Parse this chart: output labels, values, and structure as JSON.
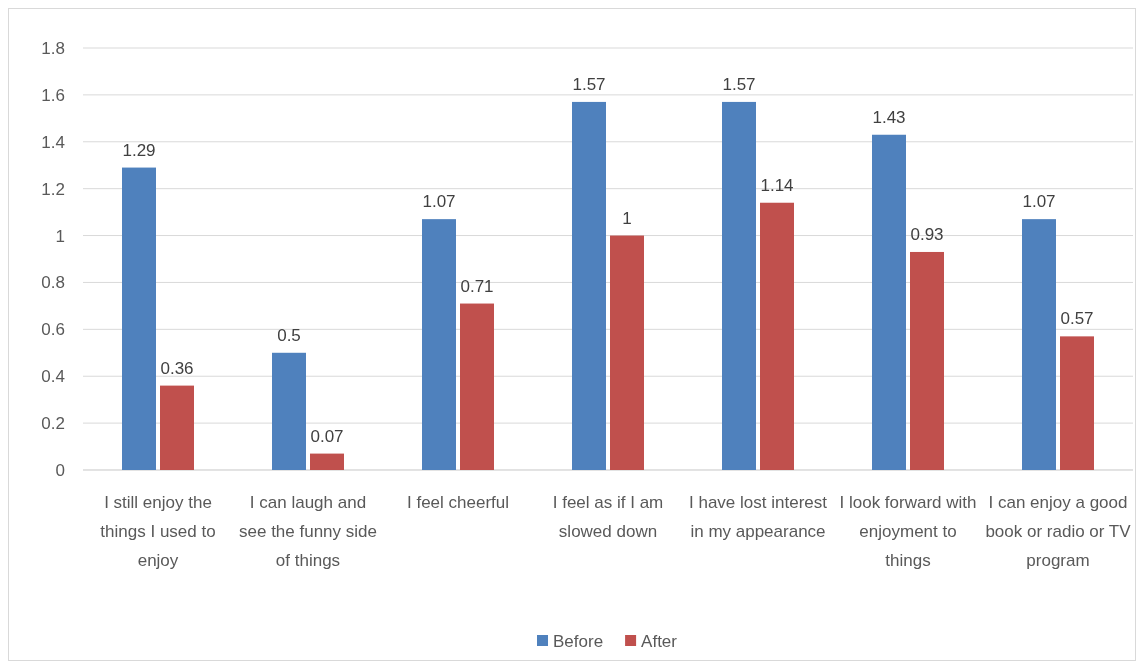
{
  "chart_data": {
    "type": "bar",
    "categories": [
      "I still enjoy the things I used to enjoy",
      "I can laugh and see the funny side of things",
      "I feel cheerful",
      "I feel as if I am slowed down",
      "I have lost interest in my appearance",
      "I look forward with enjoyment to things",
      "I can enjoy a good book or radio or TV program"
    ],
    "series": [
      {
        "name": "Before",
        "color": "#4f81bd",
        "values": [
          1.29,
          0.5,
          1.07,
          1.57,
          1.57,
          1.43,
          1.07
        ]
      },
      {
        "name": "After",
        "color": "#c0504d",
        "values": [
          0.36,
          0.07,
          0.71,
          1,
          1.14,
          0.93,
          0.57
        ]
      }
    ],
    "ylim": [
      0,
      1.8
    ],
    "yticks": [
      0,
      0.2,
      0.4,
      0.6,
      0.8,
      1,
      1.2,
      1.4,
      1.6,
      1.8
    ],
    "grid": "y",
    "legend": "bottom",
    "data_labels": true
  }
}
